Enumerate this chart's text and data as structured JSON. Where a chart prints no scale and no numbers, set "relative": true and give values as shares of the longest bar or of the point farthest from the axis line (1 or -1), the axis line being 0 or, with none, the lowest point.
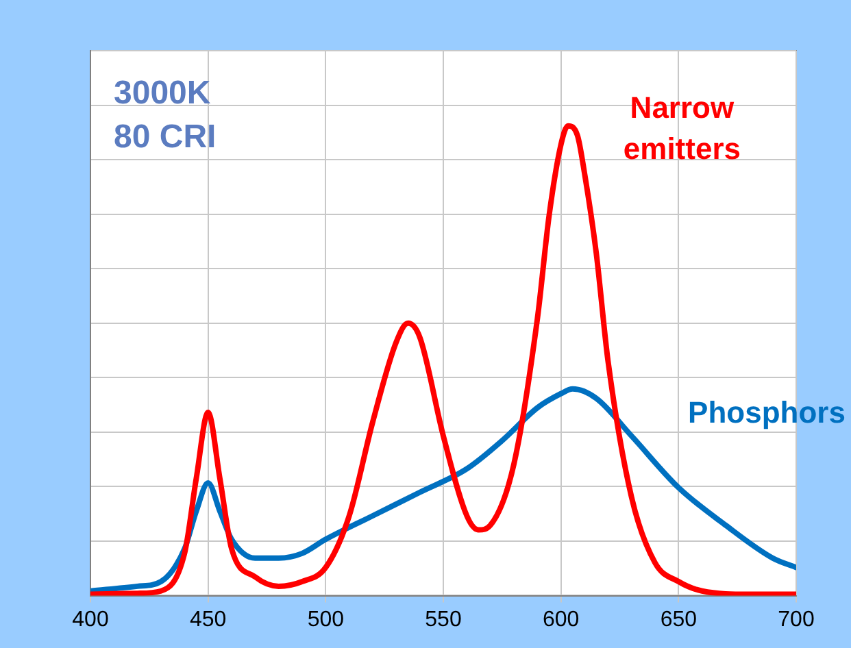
{
  "chart_data": {
    "type": "line",
    "relative": true,
    "xlim": [
      400,
      700
    ],
    "xticks": [
      400,
      450,
      500,
      550,
      600,
      650,
      700
    ],
    "grid": true,
    "legend": false,
    "marker": "none",
    "line_style": "solid",
    "annotations": [
      "3000K\n80 CRI"
    ],
    "series": [
      {
        "name": "Narrow emitters",
        "color": "#ff0000",
        "x": [
          400,
          420,
          430,
          440,
          445,
          450,
          455,
          460,
          470,
          480,
          490,
          500,
          510,
          520,
          530,
          535,
          540,
          550,
          560,
          565,
          570,
          580,
          590,
          595,
          600,
          603,
          607,
          610,
          615,
          620,
          630,
          640,
          650,
          660,
          680,
          700
        ],
        "values": [
          0.003,
          0.005,
          0.01,
          0.09,
          0.25,
          0.39,
          0.25,
          0.1,
          0.04,
          0.02,
          0.03,
          0.06,
          0.17,
          0.37,
          0.54,
          0.58,
          0.55,
          0.34,
          0.17,
          0.14,
          0.15,
          0.28,
          0.59,
          0.81,
          0.96,
          1.0,
          0.98,
          0.9,
          0.73,
          0.5,
          0.21,
          0.07,
          0.03,
          0.01,
          0.003,
          0.003
        ]
      },
      {
        "name": "Phosphors",
        "color": "#0070c0",
        "x": [
          400,
          420,
          430,
          440,
          445,
          450,
          455,
          460,
          470,
          480,
          490,
          500,
          520,
          540,
          560,
          575,
          590,
          600,
          605,
          615,
          630,
          650,
          670,
          690,
          700
        ],
        "values": [
          0.01,
          0.02,
          0.03,
          0.1,
          0.18,
          0.24,
          0.18,
          0.12,
          0.08,
          0.08,
          0.09,
          0.12,
          0.17,
          0.22,
          0.27,
          0.33,
          0.4,
          0.43,
          0.44,
          0.42,
          0.34,
          0.23,
          0.15,
          0.08,
          0.06
        ]
      }
    ]
  }
}
